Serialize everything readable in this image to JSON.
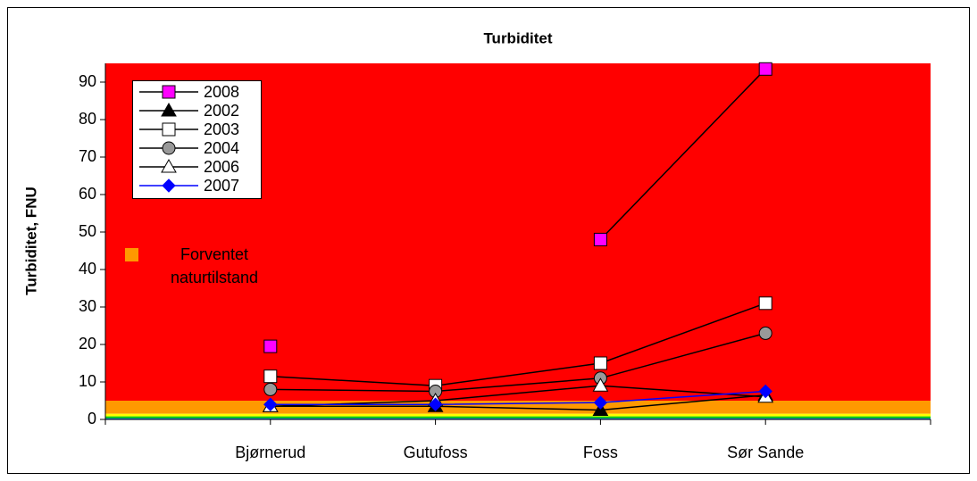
{
  "chart_data": {
    "type": "line",
    "title": "Turbiditet",
    "y_label": "Turbiditet, FNU",
    "categories": [
      "Bjørnerud",
      "Gutufoss",
      "Foss",
      "Sør Sande"
    ],
    "ylim": [
      0,
      95
    ],
    "yticks": [
      0,
      10,
      20,
      30,
      40,
      50,
      60,
      70,
      80,
      90
    ],
    "bands": [
      {
        "from": 5,
        "to": 95,
        "color": "#ff0000"
      },
      {
        "name": "Forventet naturtilstand",
        "from": 1.5,
        "to": 5,
        "color": "#ff9900"
      },
      {
        "from": 0.8,
        "to": 1.5,
        "color": "#ffff00"
      },
      {
        "from": 0.3,
        "to": 0.8,
        "color": "#00cc00"
      },
      {
        "from": 0,
        "to": 0.3,
        "color": "#0066ff"
      }
    ],
    "series": [
      {
        "name": "2008",
        "color": "#000000",
        "marker": "square",
        "marker_color": "#ff00ff",
        "values": [
          19.5,
          null,
          48,
          93.5
        ]
      },
      {
        "name": "2002",
        "color": "#000000",
        "marker": "triangle",
        "marker_color": "#000000",
        "values": [
          3.5,
          3.5,
          2.5,
          6.5
        ]
      },
      {
        "name": "2003",
        "color": "#000000",
        "marker": "square",
        "marker_color": "#ffffff",
        "values": [
          11.5,
          9,
          15,
          31
        ]
      },
      {
        "name": "2004",
        "color": "#000000",
        "marker": "circle",
        "marker_color": "#999999",
        "values": [
          8,
          7.5,
          11,
          23
        ]
      },
      {
        "name": "2006",
        "color": "#000000",
        "marker": "triangle",
        "marker_color": "#ffffff",
        "values": [
          3.5,
          5,
          9,
          6
        ]
      },
      {
        "name": "2007",
        "color": "#0000ff",
        "marker": "diamond",
        "marker_color": "#0000ff",
        "values": [
          4,
          4,
          4.5,
          7.5
        ]
      }
    ]
  }
}
